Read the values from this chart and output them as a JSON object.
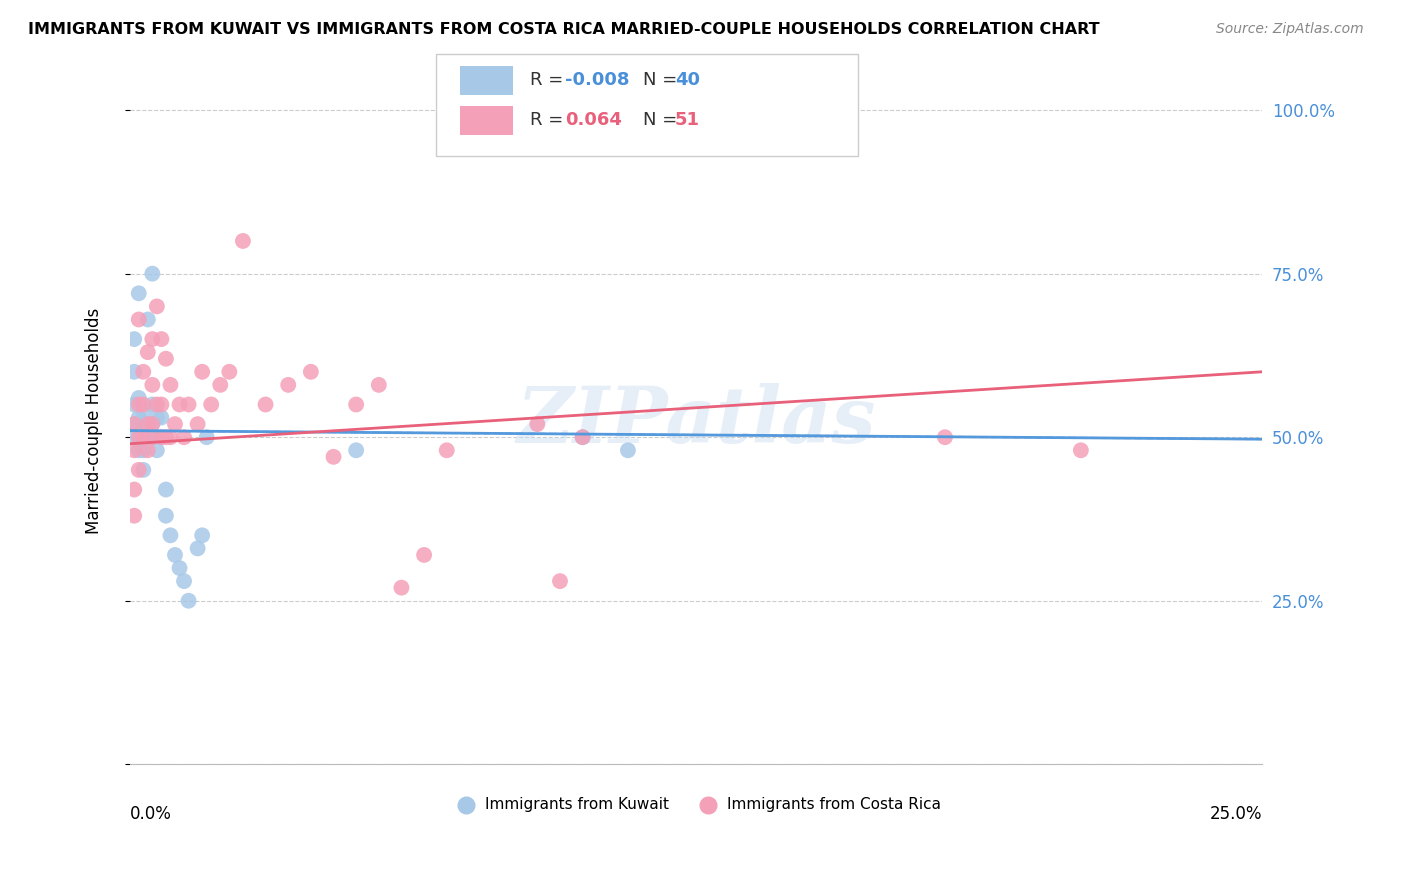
{
  "title": "IMMIGRANTS FROM KUWAIT VS IMMIGRANTS FROM COSTA RICA MARRIED-COUPLE HOUSEHOLDS CORRELATION CHART",
  "source": "Source: ZipAtlas.com",
  "ylabel": "Married-couple Households",
  "yticks": [
    0.0,
    0.25,
    0.5,
    0.75,
    1.0
  ],
  "ytick_labels": [
    "",
    "25.0%",
    "50.0%",
    "75.0%",
    "100.0%"
  ],
  "xmin": 0.0,
  "xmax": 0.25,
  "ymin": 0.0,
  "ymax": 1.05,
  "legend_r_kuwait": "-0.008",
  "legend_n_kuwait": "40",
  "legend_r_costarica": "0.064",
  "legend_n_costarica": "51",
  "kuwait_color": "#a8c8e8",
  "costarica_color": "#f4a0b8",
  "kuwait_line_color": "#5599dd",
  "costarica_line_color": "#e8607a",
  "watermark": "ZIPatlas",
  "kuwait_x": [
    0.001,
    0.001,
    0.001,
    0.001,
    0.001,
    0.002,
    0.002,
    0.002,
    0.002,
    0.002,
    0.003,
    0.003,
    0.003,
    0.003,
    0.003,
    0.003,
    0.004,
    0.004,
    0.004,
    0.005,
    0.005,
    0.005,
    0.005,
    0.006,
    0.006,
    0.007,
    0.007,
    0.008,
    0.008,
    0.009,
    0.01,
    0.011,
    0.012,
    0.013,
    0.015,
    0.016,
    0.017,
    0.05,
    0.1,
    0.11
  ],
  "kuwait_y": [
    0.5,
    0.52,
    0.55,
    0.6,
    0.65,
    0.48,
    0.5,
    0.53,
    0.56,
    0.72,
    0.45,
    0.48,
    0.5,
    0.51,
    0.52,
    0.54,
    0.5,
    0.52,
    0.68,
    0.5,
    0.52,
    0.55,
    0.75,
    0.48,
    0.53,
    0.5,
    0.53,
    0.38,
    0.42,
    0.35,
    0.32,
    0.3,
    0.28,
    0.25,
    0.33,
    0.35,
    0.5,
    0.48,
    0.5,
    0.48
  ],
  "costarica_x": [
    0.001,
    0.001,
    0.001,
    0.001,
    0.002,
    0.002,
    0.002,
    0.002,
    0.003,
    0.003,
    0.003,
    0.004,
    0.004,
    0.004,
    0.005,
    0.005,
    0.005,
    0.005,
    0.006,
    0.006,
    0.007,
    0.007,
    0.007,
    0.008,
    0.008,
    0.009,
    0.009,
    0.01,
    0.011,
    0.012,
    0.013,
    0.015,
    0.016,
    0.018,
    0.02,
    0.022,
    0.025,
    0.03,
    0.035,
    0.04,
    0.045,
    0.05,
    0.055,
    0.06,
    0.065,
    0.07,
    0.09,
    0.095,
    0.1,
    0.18,
    0.21
  ],
  "costarica_y": [
    0.38,
    0.42,
    0.48,
    0.52,
    0.45,
    0.5,
    0.55,
    0.68,
    0.5,
    0.55,
    0.6,
    0.48,
    0.52,
    0.63,
    0.5,
    0.52,
    0.58,
    0.65,
    0.55,
    0.7,
    0.5,
    0.55,
    0.65,
    0.5,
    0.62,
    0.5,
    0.58,
    0.52,
    0.55,
    0.5,
    0.55,
    0.52,
    0.6,
    0.55,
    0.58,
    0.6,
    0.8,
    0.55,
    0.58,
    0.6,
    0.47,
    0.55,
    0.58,
    0.27,
    0.32,
    0.48,
    0.52,
    0.28,
    0.5,
    0.5,
    0.48
  ]
}
